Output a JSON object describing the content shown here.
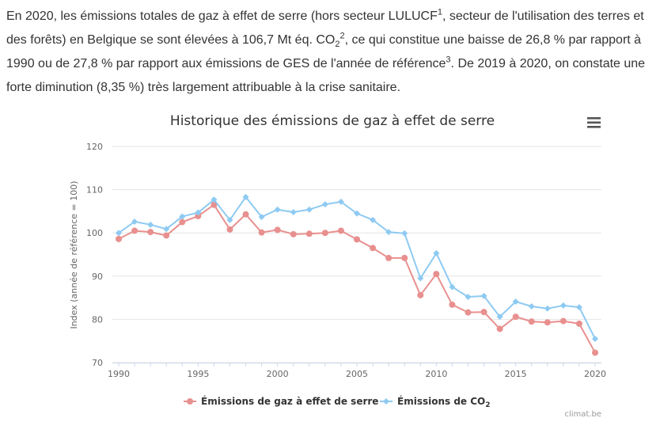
{
  "intro": {
    "p1": "En 2020, les émissions totales de gaz à effet de serre (hors secteur LULUCF",
    "sup1": "1",
    "p2": ", secteur de l'utilisation des terres et des forêts) en Belgique se sont élevées à 106,7 Mt éq. CO",
    "sub1": "2",
    "sup2": "2",
    "p3": ", ce qui constitue une baisse de 26,8 % par rapport à 1990 ou de 27,8 % par rapport aux émissions de GES de l'année de référence",
    "sup3": "3",
    "p4": ". De 2019 à 2020, on constate une forte diminution (8,35 %) très largement attribuable à la crise sanitaire."
  },
  "menu_icon": "hamburger-icon",
  "credit": "climat.be",
  "colors": {
    "ghg": "#e8908f",
    "co2": "#8ecaf2",
    "grid": "#e6e6e6",
    "axis_text": "#666666"
  },
  "chart_data": {
    "type": "line",
    "title": "Historique des émissions de gaz à effet de serre",
    "ylabel": "Index (année de référence = 100)",
    "xlabel": "",
    "ylim": [
      70,
      120
    ],
    "yticks": [
      70,
      80,
      90,
      100,
      110,
      120
    ],
    "xlim": [
      1990,
      2020
    ],
    "xticks": [
      1990,
      1995,
      2000,
      2005,
      2010,
      2015,
      2020
    ],
    "grid": true,
    "legend_position": "bottom-center",
    "x": [
      1990,
      1991,
      1992,
      1993,
      1994,
      1995,
      1996,
      1997,
      1998,
      1999,
      2000,
      2001,
      2002,
      2003,
      2004,
      2005,
      2006,
      2007,
      2008,
      2009,
      2010,
      2011,
      2012,
      2013,
      2014,
      2015,
      2016,
      2017,
      2018,
      2019,
      2020
    ],
    "series": [
      {
        "name": "Émissions de gaz à effet de serre",
        "values": [
          98.6,
          100.5,
          100.2,
          99.4,
          102.5,
          103.9,
          106.5,
          100.8,
          104.3,
          100.1,
          100.7,
          99.7,
          99.8,
          100.0,
          100.5,
          98.5,
          96.5,
          94.2,
          94.2,
          85.6,
          90.5,
          83.4,
          81.6,
          81.7,
          77.8,
          80.6,
          79.5,
          79.3,
          79.6,
          79.0,
          72.3
        ]
      },
      {
        "name": "Émissions de CO",
        "name_sub": "2",
        "values": [
          100.0,
          102.6,
          101.9,
          100.9,
          103.8,
          104.7,
          107.7,
          103.0,
          108.3,
          103.7,
          105.4,
          104.8,
          105.4,
          106.6,
          107.2,
          104.5,
          103.0,
          100.2,
          99.9,
          89.5,
          95.3,
          87.5,
          85.2,
          85.4,
          80.6,
          84.1,
          83.0,
          82.5,
          83.2,
          82.8,
          75.5
        ]
      }
    ]
  }
}
